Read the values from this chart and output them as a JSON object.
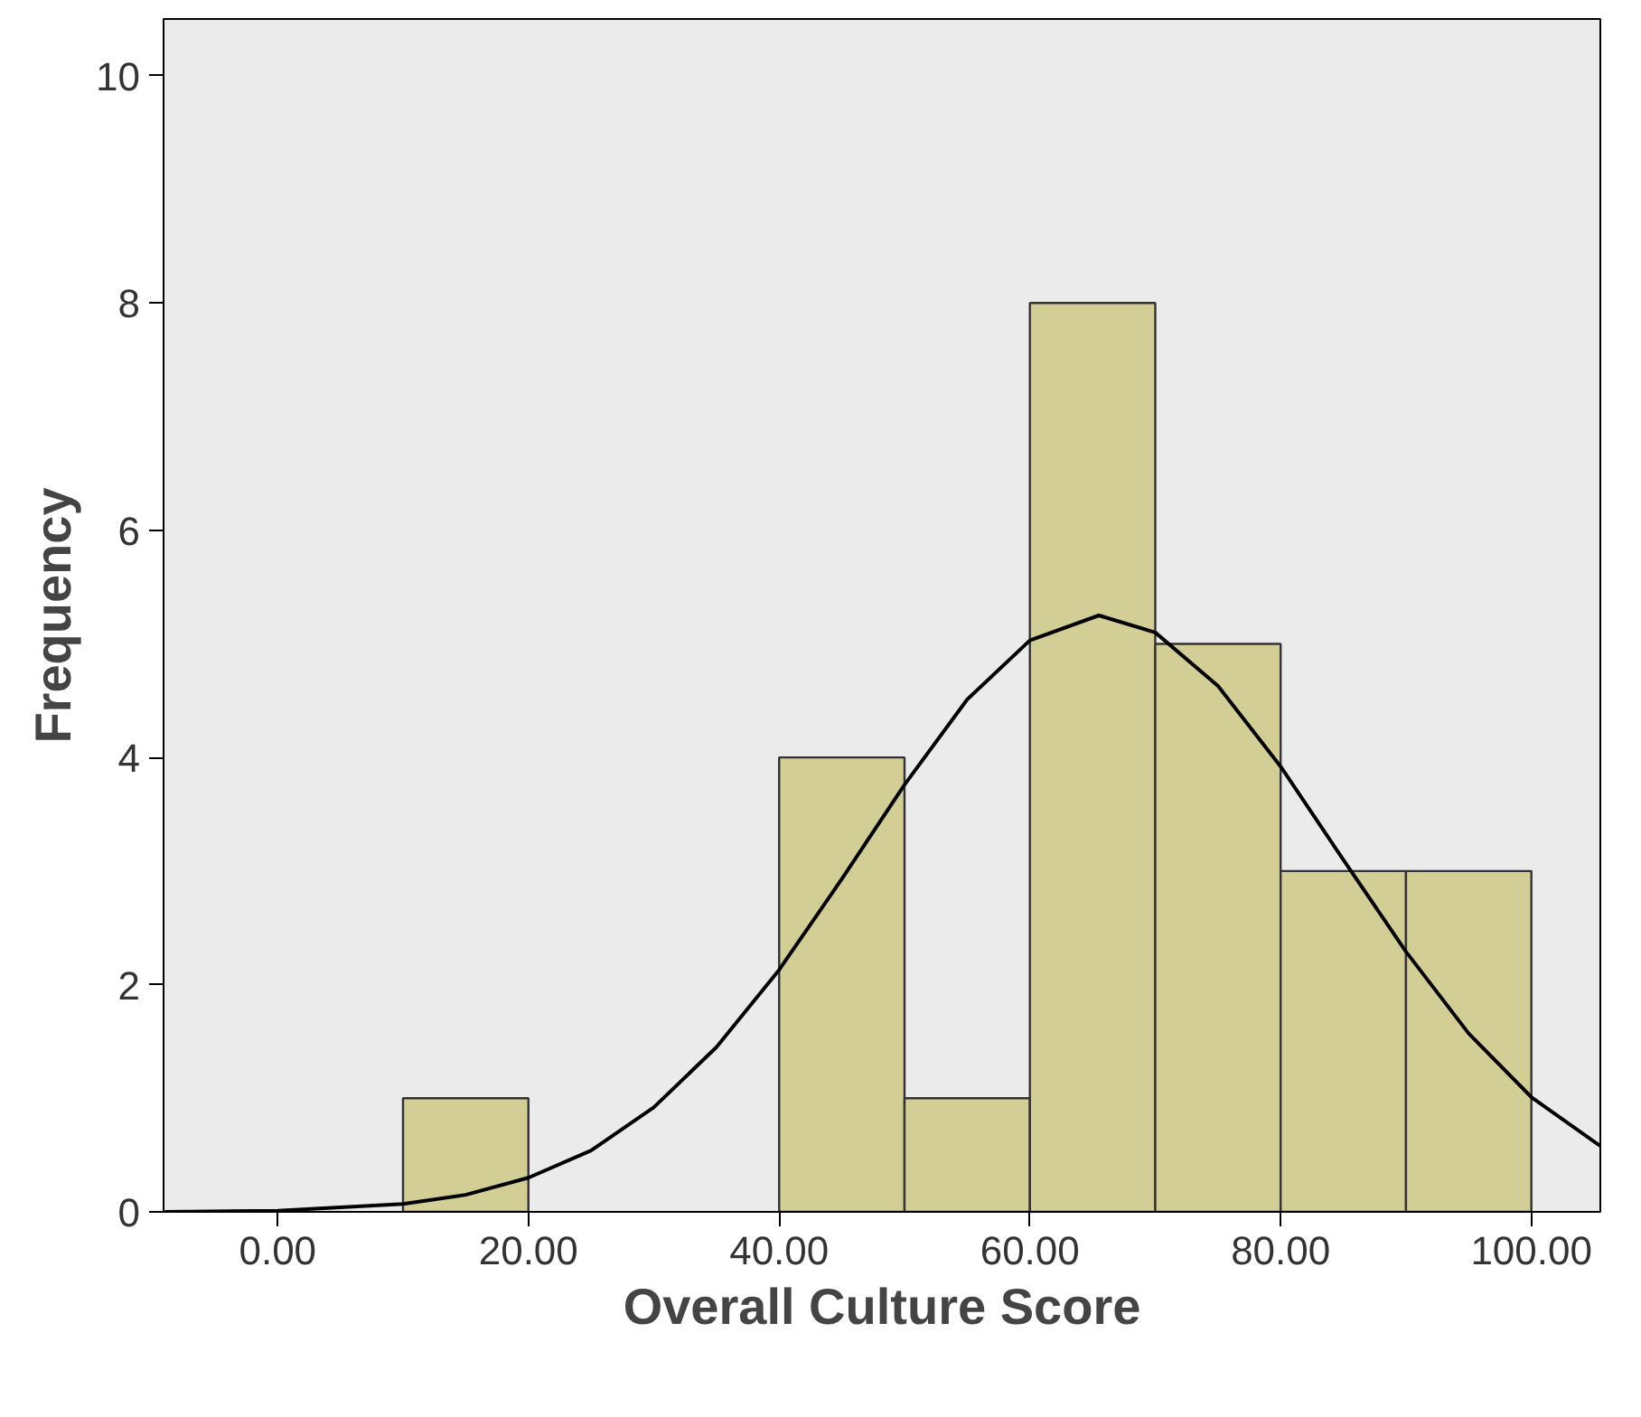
{
  "chart_data": {
    "type": "histogram",
    "xlabel": "Overall Culture Score",
    "ylabel": "Frequency",
    "xlim": [
      -9.1,
      105.5
    ],
    "ylim": [
      0,
      10.5
    ],
    "xticks": [
      {
        "value": 0,
        "label": "0.00"
      },
      {
        "value": 20,
        "label": "20.00"
      },
      {
        "value": 40,
        "label": "40.00"
      },
      {
        "value": 60,
        "label": "60.00"
      },
      {
        "value": 80,
        "label": "80.00"
      },
      {
        "value": 100,
        "label": "100.00"
      }
    ],
    "yticks": [
      0,
      2,
      4,
      6,
      8,
      10
    ],
    "grid": false,
    "series": [
      {
        "color": "#d3cd96",
        "bins": [
          10,
          20,
          30,
          40,
          50,
          60,
          70,
          80,
          90,
          100
        ],
        "values": [
          1,
          0,
          0,
          4,
          1,
          8,
          5,
          3,
          3
        ]
      },
      {
        "type": "line",
        "color": "#000000",
        "marker": "none",
        "x": [
          -9,
          0,
          10,
          15,
          20,
          25,
          30,
          35,
          40,
          45,
          50,
          55,
          60,
          65.5,
          70,
          75,
          80,
          85,
          90,
          95,
          100,
          105.5
        ],
        "values": [
          0.0,
          0.01,
          0.07,
          0.15,
          0.3,
          0.54,
          0.92,
          1.45,
          2.13,
          2.93,
          3.76,
          4.51,
          5.03,
          5.25,
          5.1,
          4.63,
          3.92,
          3.1,
          2.29,
          1.57,
          1.01,
          0.58
        ]
      }
    ]
  }
}
